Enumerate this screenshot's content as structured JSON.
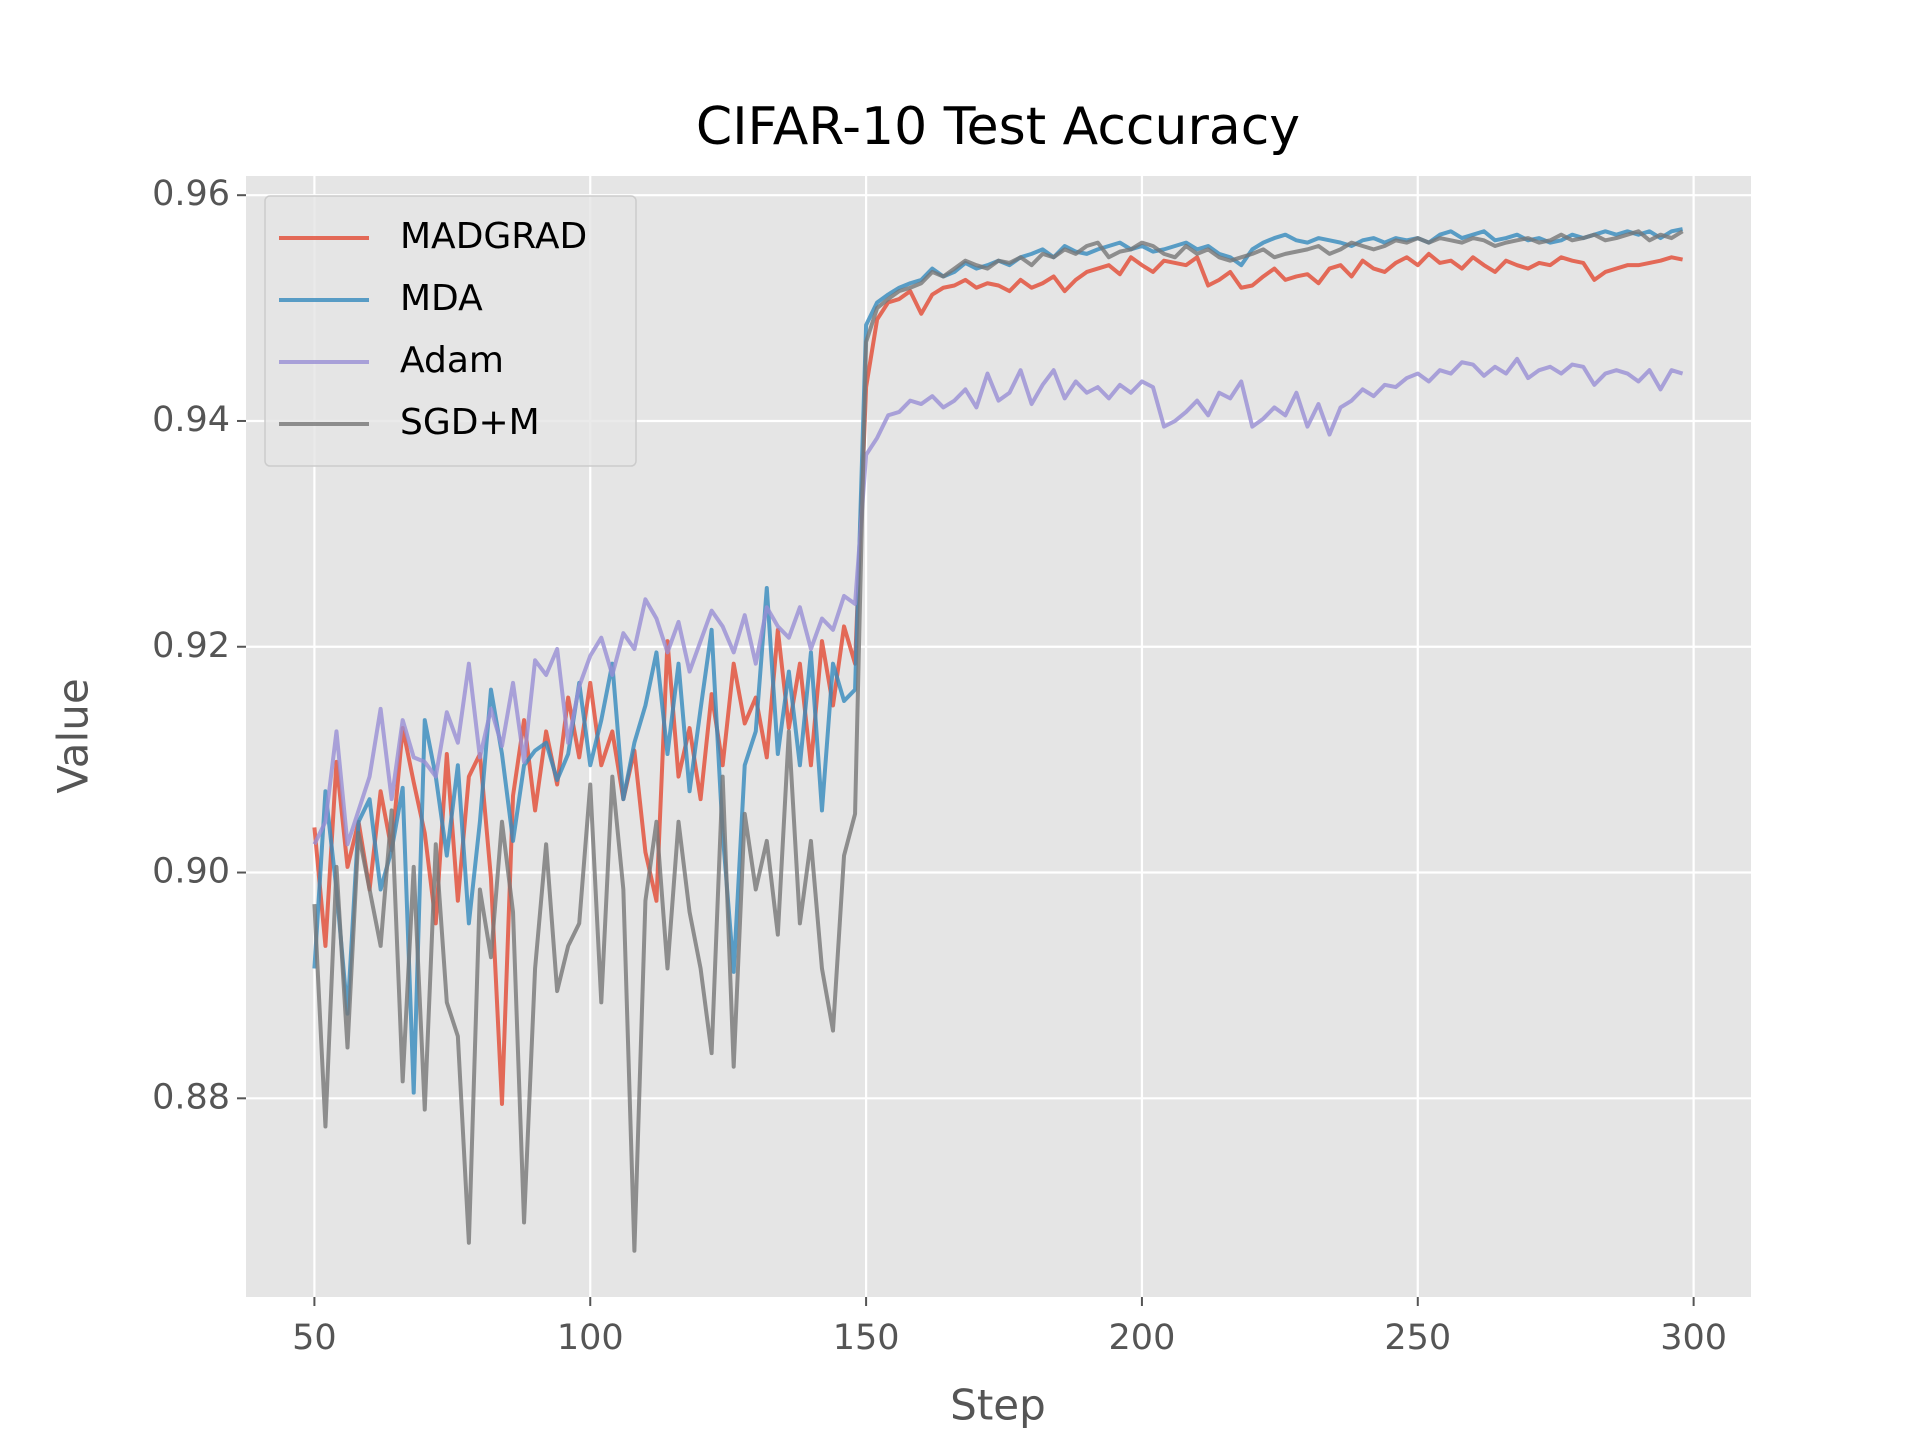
{
  "chart_data": {
    "type": "line",
    "title": "CIFAR-10 Test Accuracy",
    "x_label": "Step",
    "y_label": "Value",
    "grid": true,
    "legend": "upper left",
    "xlim": [
      37.6,
      310.4
    ],
    "ylim": [
      0.8624,
      0.9617
    ],
    "xticks": [
      50,
      100,
      150,
      200,
      250,
      300
    ],
    "yticks": [
      0.88,
      {
        "value": 0.9,
        "label": "0.90"
      },
      0.92,
      0.94,
      0.96
    ],
    "x": [
      50,
      52,
      54,
      56,
      58,
      60,
      62,
      64,
      66,
      68,
      70,
      72,
      74,
      76,
      78,
      80,
      82,
      84,
      86,
      88,
      90,
      92,
      94,
      96,
      98,
      100,
      102,
      104,
      106,
      108,
      110,
      112,
      114,
      116,
      118,
      120,
      122,
      124,
      126,
      128,
      130,
      132,
      134,
      136,
      138,
      140,
      142,
      144,
      146,
      148,
      150,
      152,
      154,
      156,
      158,
      160,
      162,
      164,
      166,
      168,
      170,
      172,
      174,
      176,
      178,
      180,
      182,
      184,
      186,
      188,
      190,
      192,
      194,
      196,
      198,
      200,
      202,
      204,
      206,
      208,
      210,
      212,
      214,
      216,
      218,
      220,
      222,
      224,
      226,
      228,
      230,
      232,
      234,
      236,
      238,
      240,
      242,
      244,
      246,
      248,
      250,
      252,
      254,
      256,
      258,
      260,
      262,
      264,
      266,
      268,
      270,
      272,
      274,
      276,
      278,
      280,
      282,
      284,
      286,
      288,
      290,
      292,
      294,
      296,
      298
    ],
    "series": [
      {
        "name": "MADGRAD",
        "color": "#E24A33",
        "values": [
          0.904,
          0.8935,
          0.9098,
          0.9005,
          0.9045,
          0.8985,
          0.9072,
          0.902,
          0.9128,
          0.908,
          0.9035,
          0.8955,
          0.9105,
          0.8975,
          0.9085,
          0.9105,
          0.8995,
          0.8795,
          0.9068,
          0.9135,
          0.9055,
          0.9125,
          0.9078,
          0.9155,
          0.9102,
          0.9168,
          0.9095,
          0.9125,
          0.9065,
          0.9108,
          0.9018,
          0.8975,
          0.9205,
          0.9085,
          0.9128,
          0.9065,
          0.9158,
          0.9095,
          0.9185,
          0.9132,
          0.9155,
          0.9102,
          0.9215,
          0.9128,
          0.9185,
          0.9095,
          0.9205,
          0.9148,
          0.9218,
          0.9185,
          0.943,
          0.949,
          0.9505,
          0.9508,
          0.9515,
          0.9495,
          0.9512,
          0.9518,
          0.952,
          0.9525,
          0.9518,
          0.9522,
          0.952,
          0.9515,
          0.9525,
          0.9518,
          0.9522,
          0.9528,
          0.9515,
          0.9525,
          0.9532,
          0.9535,
          0.9538,
          0.953,
          0.9545,
          0.9538,
          0.9532,
          0.9542,
          0.954,
          0.9538,
          0.9545,
          0.952,
          0.9525,
          0.9532,
          0.9518,
          0.952,
          0.9528,
          0.9535,
          0.9525,
          0.9528,
          0.953,
          0.9522,
          0.9535,
          0.9538,
          0.9528,
          0.9542,
          0.9535,
          0.9532,
          0.954,
          0.9545,
          0.9538,
          0.9548,
          0.954,
          0.9542,
          0.9535,
          0.9545,
          0.9538,
          0.9532,
          0.9542,
          0.9538,
          0.9535,
          0.954,
          0.9538,
          0.9545,
          0.9542,
          0.954,
          0.9525,
          0.9532,
          0.9535,
          0.9538,
          0.9538,
          0.954,
          0.9542,
          0.9545,
          0.9543
        ]
      },
      {
        "name": "MDA",
        "color": "#348ABD",
        "values": [
          0.8915,
          0.9072,
          0.8985,
          0.8875,
          0.9045,
          0.9065,
          0.8985,
          0.902,
          0.9075,
          0.8805,
          0.9135,
          0.9085,
          0.9015,
          0.9095,
          0.8955,
          0.9045,
          0.9162,
          0.9105,
          0.9028,
          0.9095,
          0.9108,
          0.9115,
          0.9082,
          0.9105,
          0.9168,
          0.9095,
          0.9135,
          0.9185,
          0.9065,
          0.9115,
          0.9148,
          0.9195,
          0.9105,
          0.9185,
          0.9072,
          0.9145,
          0.9215,
          0.9035,
          0.8912,
          0.9095,
          0.9125,
          0.9252,
          0.9105,
          0.9178,
          0.9095,
          0.9195,
          0.9055,
          0.9185,
          0.9152,
          0.9162,
          0.9485,
          0.9505,
          0.9512,
          0.9518,
          0.9522,
          0.9525,
          0.9535,
          0.9528,
          0.9532,
          0.954,
          0.9535,
          0.9538,
          0.9542,
          0.9538,
          0.9545,
          0.9548,
          0.9552,
          0.9545,
          0.9555,
          0.955,
          0.9548,
          0.9552,
          0.9555,
          0.9558,
          0.9552,
          0.9555,
          0.955,
          0.9552,
          0.9555,
          0.9558,
          0.9552,
          0.9555,
          0.9548,
          0.9545,
          0.9538,
          0.9552,
          0.9558,
          0.9562,
          0.9565,
          0.956,
          0.9558,
          0.9562,
          0.956,
          0.9558,
          0.9555,
          0.956,
          0.9562,
          0.9558,
          0.9562,
          0.956,
          0.9562,
          0.9558,
          0.9565,
          0.9568,
          0.9562,
          0.9565,
          0.9568,
          0.956,
          0.9562,
          0.9565,
          0.956,
          0.9562,
          0.9558,
          0.956,
          0.9565,
          0.9562,
          0.9565,
          0.9568,
          0.9565,
          0.9568,
          0.9565,
          0.9568,
          0.9562,
          0.9568,
          0.957
        ]
      },
      {
        "name": "Adam",
        "color": "#988ED5",
        "values": [
          0.9025,
          0.9045,
          0.9125,
          0.9025,
          0.9055,
          0.9085,
          0.9145,
          0.9065,
          0.9135,
          0.9102,
          0.9098,
          0.9085,
          0.9142,
          0.9115,
          0.9185,
          0.9102,
          0.9145,
          0.9112,
          0.9168,
          0.9098,
          0.9188,
          0.9175,
          0.9198,
          0.9115,
          0.9165,
          0.9192,
          0.9208,
          0.9175,
          0.9212,
          0.9198,
          0.9242,
          0.9225,
          0.9195,
          0.9222,
          0.9178,
          0.9205,
          0.9232,
          0.9218,
          0.9195,
          0.9228,
          0.9185,
          0.9235,
          0.9218,
          0.9208,
          0.9235,
          0.9198,
          0.9225,
          0.9215,
          0.9245,
          0.9238,
          0.937,
          0.9385,
          0.9405,
          0.9408,
          0.9418,
          0.9415,
          0.9422,
          0.9412,
          0.9418,
          0.9428,
          0.9412,
          0.9442,
          0.9418,
          0.9425,
          0.9445,
          0.9415,
          0.9432,
          0.9445,
          0.942,
          0.9435,
          0.9425,
          0.943,
          0.942,
          0.9432,
          0.9425,
          0.9435,
          0.943,
          0.9395,
          0.94,
          0.9408,
          0.9418,
          0.9405,
          0.9425,
          0.942,
          0.9435,
          0.9395,
          0.9402,
          0.9412,
          0.9405,
          0.9425,
          0.9395,
          0.9415,
          0.9388,
          0.9412,
          0.9418,
          0.9428,
          0.9422,
          0.9432,
          0.943,
          0.9438,
          0.9442,
          0.9435,
          0.9445,
          0.9442,
          0.9452,
          0.945,
          0.944,
          0.9448,
          0.9442,
          0.9455,
          0.9438,
          0.9445,
          0.9448,
          0.9442,
          0.945,
          0.9448,
          0.9432,
          0.9442,
          0.9445,
          0.9442,
          0.9435,
          0.9445,
          0.9428,
          0.9445,
          0.9442
        ]
      },
      {
        "name": "SGD+M",
        "color": "#777777",
        "values": [
          0.8972,
          0.8775,
          0.9005,
          0.8845,
          0.9035,
          0.8985,
          0.8935,
          0.9055,
          0.8815,
          0.9005,
          0.879,
          0.9025,
          0.8885,
          0.8855,
          0.8672,
          0.8985,
          0.8925,
          0.9045,
          0.8965,
          0.869,
          0.8915,
          0.9025,
          0.8895,
          0.8935,
          0.8955,
          0.9078,
          0.8885,
          0.9085,
          0.8985,
          0.8665,
          0.8975,
          0.9045,
          0.8915,
          0.9045,
          0.8965,
          0.8915,
          0.884,
          0.9085,
          0.8828,
          0.9052,
          0.8985,
          0.9028,
          0.8945,
          0.9125,
          0.8955,
          0.9028,
          0.8915,
          0.886,
          0.9015,
          0.9052,
          0.947,
          0.95,
          0.9508,
          0.9515,
          0.9518,
          0.9522,
          0.9532,
          0.9528,
          0.9535,
          0.9542,
          0.9538,
          0.9535,
          0.9542,
          0.954,
          0.9545,
          0.9538,
          0.9548,
          0.9545,
          0.9552,
          0.9548,
          0.9555,
          0.9558,
          0.9545,
          0.955,
          0.9552,
          0.9558,
          0.9555,
          0.9548,
          0.9545,
          0.9555,
          0.9548,
          0.9552,
          0.9545,
          0.9542,
          0.9545,
          0.9548,
          0.9552,
          0.9545,
          0.9548,
          0.955,
          0.9552,
          0.9555,
          0.9548,
          0.9552,
          0.9558,
          0.9555,
          0.9552,
          0.9555,
          0.956,
          0.9558,
          0.9562,
          0.9558,
          0.9562,
          0.956,
          0.9558,
          0.9562,
          0.956,
          0.9555,
          0.9558,
          0.956,
          0.9562,
          0.9558,
          0.956,
          0.9565,
          0.956,
          0.9562,
          0.9565,
          0.956,
          0.9562,
          0.9565,
          0.9568,
          0.956,
          0.9565,
          0.9562,
          0.9568
        ]
      }
    ]
  }
}
